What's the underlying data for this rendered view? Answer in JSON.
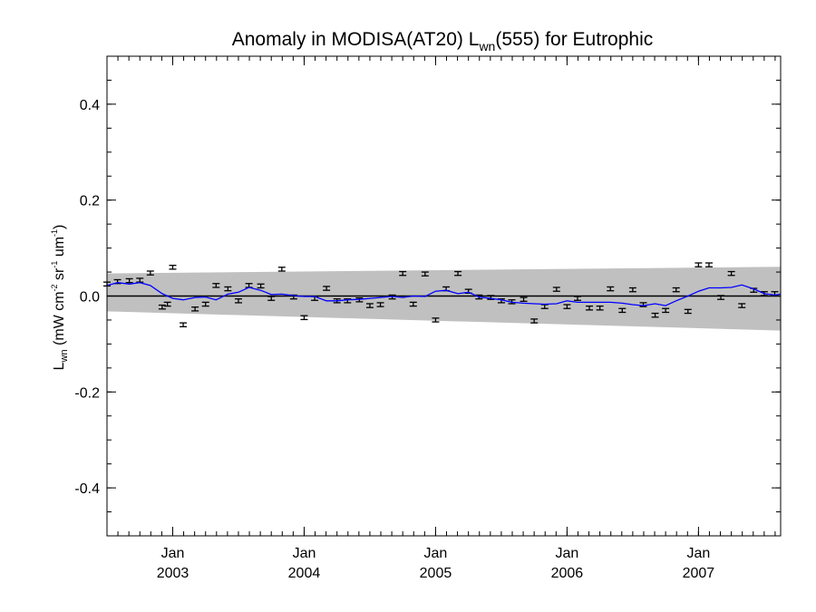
{
  "chart_data": {
    "type": "line",
    "title": {
      "main": "Anomaly in MODISA(AT20) L",
      "main_sub": "wn",
      "rest": "(555) for Eutrophic"
    },
    "ylabel": {
      "base": "L",
      "base_sub": "wn",
      "units_open": " (mW cm",
      "sup1": "-2",
      "mid1": " sr",
      "sup2": "-1",
      "mid2": " um",
      "sup3": "-1",
      "close": ")"
    },
    "xlim": [
      2002.5,
      2007.625
    ],
    "ylim": [
      -0.5,
      0.5
    ],
    "y_ticks": [
      {
        "value": 0.4,
        "label": "0.4"
      },
      {
        "value": 0.2,
        "label": "0.2"
      },
      {
        "value": 0.0,
        "label": "0.0"
      },
      {
        "value": -0.2,
        "label": "-0.2"
      },
      {
        "value": -0.4,
        "label": "-0.4"
      }
    ],
    "y_minor_step": 0.05,
    "x_ticks": [
      {
        "value": 2003.0,
        "month": "Jan",
        "year": "2003"
      },
      {
        "value": 2004.0,
        "month": "Jan",
        "year": "2004"
      },
      {
        "value": 2005.0,
        "month": "Jan",
        "year": "2005"
      },
      {
        "value": 2006.0,
        "month": "Jan",
        "year": "2006"
      },
      {
        "value": 2007.0,
        "month": "Jan",
        "year": "2007"
      }
    ],
    "x_minor_step": 0.08333,
    "zero_line": 0.0,
    "band": {
      "x": [
        2002.5,
        2007.625
      ],
      "upper": [
        0.047,
        0.061
      ],
      "lower": [
        -0.032,
        -0.072
      ],
      "color": "#c0c0c0"
    },
    "anomaly_points": {
      "x": [
        2002.5,
        2002.58,
        2002.67,
        2002.75,
        2002.83,
        2002.92,
        2002.96,
        2003.0,
        2003.08,
        2003.17,
        2003.25,
        2003.33,
        2003.42,
        2003.5,
        2003.58,
        2003.67,
        2003.75,
        2003.83,
        2003.92,
        2004.0,
        2004.08,
        2004.17,
        2004.25,
        2004.33,
        2004.42,
        2004.5,
        2004.58,
        2004.67,
        2004.75,
        2004.83,
        2004.92,
        2005.0,
        2005.08,
        2005.17,
        2005.25,
        2005.33,
        2005.42,
        2005.5,
        2005.58,
        2005.67,
        2005.75,
        2005.83,
        2005.92,
        2006.0,
        2006.08,
        2006.17,
        2006.25,
        2006.33,
        2006.42,
        2006.5,
        2006.58,
        2006.67,
        2006.75,
        2006.83,
        2006.92,
        2007.0,
        2007.08,
        2007.17,
        2007.25,
        2007.33,
        2007.42,
        2007.5,
        2007.58
      ],
      "y": [
        0.025,
        0.03,
        0.032,
        0.033,
        0.048,
        -0.023,
        -0.017,
        0.06,
        -0.06,
        -0.027,
        -0.017,
        0.022,
        0.015,
        -0.01,
        0.022,
        0.021,
        -0.005,
        0.056,
        -0.002,
        -0.045,
        -0.005,
        0.016,
        -0.01,
        -0.01,
        -0.008,
        -0.02,
        -0.018,
        -0.002,
        0.047,
        -0.017,
        0.046,
        -0.05,
        0.015,
        0.047,
        0.01,
        -0.002,
        -0.003,
        -0.01,
        -0.012,
        -0.007,
        -0.052,
        -0.022,
        0.014,
        -0.022,
        -0.005,
        -0.025,
        -0.025,
        0.015,
        -0.03,
        0.013,
        -0.018,
        -0.04,
        -0.03,
        0.013,
        -0.032,
        0.065,
        0.065,
        -0.003,
        0.047,
        -0.02,
        0.012,
        0.005,
        0.005
      ],
      "err": 0.004,
      "color": "#000000"
    },
    "smooth_line": {
      "x": [
        2002.5,
        2002.58,
        2002.67,
        2002.75,
        2002.83,
        2002.92,
        2003.0,
        2003.08,
        2003.17,
        2003.25,
        2003.33,
        2003.42,
        2003.5,
        2003.58,
        2003.67,
        2003.75,
        2003.83,
        2003.92,
        2004.0,
        2004.08,
        2004.17,
        2004.25,
        2004.33,
        2004.42,
        2004.5,
        2004.58,
        2004.67,
        2004.75,
        2004.83,
        2004.92,
        2005.0,
        2005.08,
        2005.17,
        2005.25,
        2005.33,
        2005.42,
        2005.5,
        2005.58,
        2005.67,
        2005.75,
        2005.83,
        2005.92,
        2006.0,
        2006.08,
        2006.17,
        2006.25,
        2006.33,
        2006.42,
        2006.5,
        2006.58,
        2006.67,
        2006.75,
        2006.83,
        2006.92,
        2007.0,
        2007.08,
        2007.17,
        2007.25,
        2007.33,
        2007.42,
        2007.5,
        2007.58,
        2007.625
      ],
      "y": [
        0.022,
        0.028,
        0.025,
        0.028,
        0.022,
        0.005,
        -0.005,
        -0.008,
        -0.003,
        -0.002,
        -0.008,
        0.004,
        0.008,
        0.018,
        0.012,
        0.003,
        0.004,
        0.001,
        -0.001,
        -0.001,
        -0.01,
        -0.01,
        -0.008,
        -0.007,
        -0.005,
        -0.003,
        -0.001,
        -0.003,
        0.0,
        -0.001,
        0.01,
        0.012,
        0.005,
        0.008,
        -0.002,
        -0.005,
        -0.008,
        -0.013,
        -0.015,
        -0.016,
        -0.017,
        -0.016,
        -0.01,
        -0.013,
        -0.013,
        -0.013,
        -0.013,
        -0.015,
        -0.018,
        -0.02,
        -0.016,
        -0.02,
        -0.01,
        0.0,
        0.01,
        0.017,
        0.017,
        0.018,
        0.023,
        0.015,
        0.005,
        0.002,
        0.004
      ],
      "color": "#0000ff"
    }
  }
}
